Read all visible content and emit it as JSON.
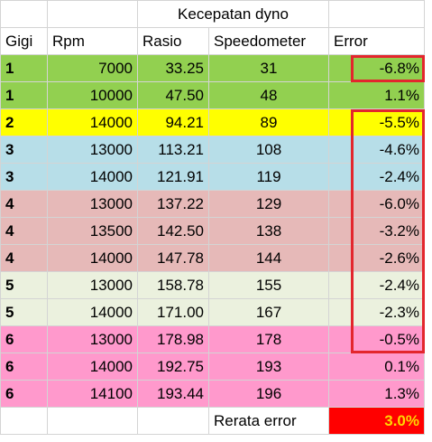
{
  "title": "Kecepatan dyno",
  "headers": [
    "Gigi",
    "Rpm",
    "Rasio",
    "Speedometer",
    "Error"
  ],
  "rows": [
    {
      "gigi": "1",
      "rpm": "7000",
      "rasio": "33.25",
      "speedometer": "31",
      "error": "-6.8%",
      "color": "#92d050"
    },
    {
      "gigi": "1",
      "rpm": "10000",
      "rasio": "47.50",
      "speedometer": "48",
      "error": "1.1%",
      "color": "#92d050"
    },
    {
      "gigi": "2",
      "rpm": "14000",
      "rasio": "94.21",
      "speedometer": "89",
      "error": "-5.5%",
      "color": "#ffff00"
    },
    {
      "gigi": "3",
      "rpm": "13000",
      "rasio": "113.21",
      "speedometer": "108",
      "error": "-4.6%",
      "color": "#b7dee8"
    },
    {
      "gigi": "3",
      "rpm": "14000",
      "rasio": "121.91",
      "speedometer": "119",
      "error": "-2.4%",
      "color": "#b7dee8"
    },
    {
      "gigi": "4",
      "rpm": "13000",
      "rasio": "137.22",
      "speedometer": "129",
      "error": "-6.0%",
      "color": "#e6b9b8"
    },
    {
      "gigi": "4",
      "rpm": "13500",
      "rasio": "142.50",
      "speedometer": "138",
      "error": "-3.2%",
      "color": "#e6b9b8"
    },
    {
      "gigi": "4",
      "rpm": "14000",
      "rasio": "147.78",
      "speedometer": "144",
      "error": "-2.6%",
      "color": "#e6b9b8"
    },
    {
      "gigi": "5",
      "rpm": "13000",
      "rasio": "158.78",
      "speedometer": "155",
      "error": "-2.4%",
      "color": "#ebf1de"
    },
    {
      "gigi": "5",
      "rpm": "14000",
      "rasio": "171.00",
      "speedometer": "167",
      "error": "-2.3%",
      "color": "#ebf1de"
    },
    {
      "gigi": "6",
      "rpm": "13000",
      "rasio": "178.98",
      "speedometer": "178",
      "error": "-0.5%",
      "color": "#ff99cc"
    },
    {
      "gigi": "6",
      "rpm": "14000",
      "rasio": "192.75",
      "speedometer": "193",
      "error": "0.1%",
      "color": "#ff99cc"
    },
    {
      "gigi": "6",
      "rpm": "14100",
      "rasio": "193.44",
      "speedometer": "196",
      "error": "1.3%",
      "color": "#ff99cc"
    }
  ],
  "footer": {
    "label": "Rerata error",
    "value": "3.0%",
    "color": "#ff0000",
    "text_color": "#ffd700"
  },
  "highlight_color": "#e3262d"
}
